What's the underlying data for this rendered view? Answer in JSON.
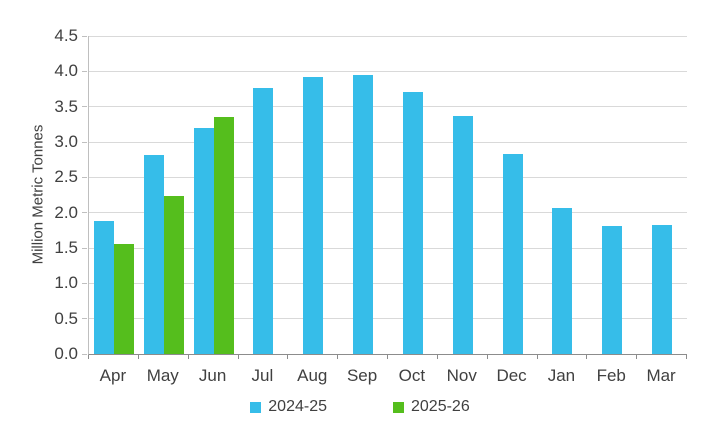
{
  "chart_data": {
    "type": "bar",
    "title": "",
    "xlabel": "",
    "ylabel": "Million Metric Tonnes",
    "ylim": [
      0,
      4.5
    ],
    "ytick_step": 0.5,
    "grid": true,
    "legend_position": "bottom",
    "categories": [
      "Apr",
      "May",
      "Jun",
      "Jul",
      "Aug",
      "Sep",
      "Oct",
      "Nov",
      "Dec",
      "Jan",
      "Feb",
      "Mar"
    ],
    "series": [
      {
        "name": "2024-25",
        "color": "#36bde9",
        "values": [
          1.88,
          2.82,
          3.2,
          3.76,
          3.92,
          3.95,
          3.71,
          3.37,
          2.83,
          2.06,
          1.81,
          1.83
        ]
      },
      {
        "name": "2025-26",
        "color": "#55be1d",
        "values": [
          1.55,
          2.23,
          3.35,
          null,
          null,
          null,
          null,
          null,
          null,
          null,
          null,
          null
        ]
      }
    ]
  },
  "colors": {
    "series_2024_25": "#36bde9",
    "series_2025_26": "#55be1d",
    "gridline": "#d9d9d9",
    "axis_line": "#8c8c8c",
    "tick_text": "#404040"
  }
}
